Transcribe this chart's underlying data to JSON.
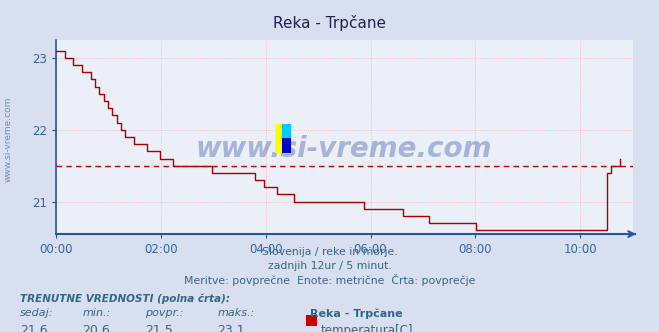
{
  "title": "Reka - Trpčane",
  "bg_color": "#d8dff0",
  "plot_bg_color": "#eaeff8",
  "grid_color": "#ffaaaa",
  "line_color": "#aa0000",
  "avg_line_color": "#cc0000",
  "avg_value": 21.5,
  "x_ticks": [
    0,
    2,
    4,
    6,
    8,
    10
  ],
  "x_tick_labels": [
    "00:00",
    "02:00",
    "04:00",
    "06:00",
    "08:00",
    "10:00"
  ],
  "x_max": 11.0,
  "subtitle1": "Slovenija / reke in morje.",
  "subtitle2": "zadnjih 12ur / 5 minut.",
  "subtitle3": "Meritve: povprečne  Enote: metrične  Črta: povprečje",
  "footer_label": "TRENUTNE VREDNOSTI (polna črta):",
  "col_sedaj": "21,6",
  "col_min": "20,6",
  "col_povpr": "21,5",
  "col_maks": "23,1",
  "legend_station": "Reka - Trpčane",
  "legend_sublabel": "temperatura[C]",
  "legend_color": "#cc0000",
  "watermark": "www.si-vreme.com",
  "watermark_color": "#3355aa",
  "left_label": "www.si-vreme.com",
  "left_label_color": "#5577bb",
  "axis_color": "#2255aa",
  "tick_color": "#3366aa",
  "title_color": "#222255",
  "subtitle_color": "#336688",
  "footer_color": "#336688",
  "y_ticks": [
    21,
    22,
    23
  ],
  "y_min": 20.55,
  "y_max": 23.25,
  "temperatures": [
    23.1,
    23.1,
    23.0,
    23.0,
    22.9,
    22.9,
    22.8,
    22.8,
    22.7,
    22.6,
    22.5,
    22.4,
    22.3,
    22.2,
    22.1,
    22.0,
    21.9,
    21.9,
    21.8,
    21.8,
    21.8,
    21.7,
    21.7,
    21.7,
    21.6,
    21.6,
    21.6,
    21.5,
    21.5,
    21.5,
    21.5,
    21.5,
    21.5,
    21.5,
    21.5,
    21.5,
    21.4,
    21.4,
    21.4,
    21.4,
    21.4,
    21.4,
    21.4,
    21.4,
    21.4,
    21.4,
    21.3,
    21.3,
    21.2,
    21.2,
    21.2,
    21.1,
    21.1,
    21.1,
    21.1,
    21.0,
    21.0,
    21.0,
    21.0,
    21.0,
    21.0,
    21.0,
    21.0,
    21.0,
    21.0,
    21.0,
    21.0,
    21.0,
    21.0,
    21.0,
    21.0,
    20.9,
    20.9,
    20.9,
    20.9,
    20.9,
    20.9,
    20.9,
    20.9,
    20.9,
    20.8,
    20.8,
    20.8,
    20.8,
    20.8,
    20.8,
    20.7,
    20.7,
    20.7,
    20.7,
    20.7,
    20.7,
    20.7,
    20.7,
    20.7,
    20.7,
    20.7,
    20.6,
    20.6,
    20.6,
    20.6,
    20.6,
    20.6,
    20.6,
    20.6,
    20.6,
    20.6,
    20.6,
    20.6,
    20.6,
    20.6,
    20.6,
    20.6,
    20.6,
    20.6,
    20.6,
    20.6,
    20.6,
    20.6,
    20.6,
    20.6,
    20.6,
    20.6,
    20.6,
    20.6,
    20.6,
    20.6,
    21.4,
    21.5,
    21.5,
    21.6
  ]
}
